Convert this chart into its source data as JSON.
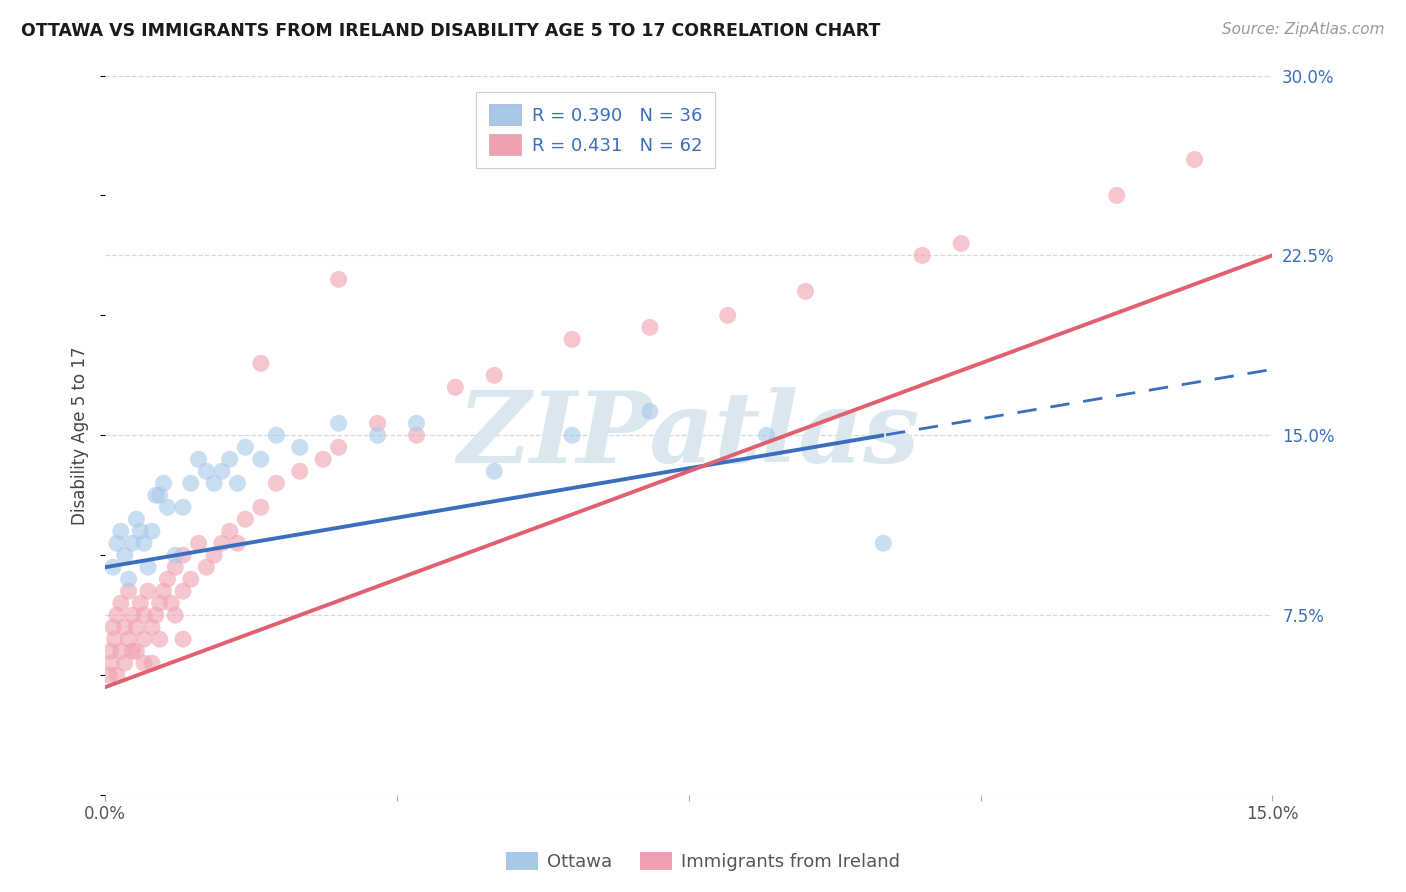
{
  "title": "OTTAWA VS IMMIGRANTS FROM IRELAND DISABILITY AGE 5 TO 17 CORRELATION CHART",
  "source": "Source: ZipAtlas.com",
  "ylabel": "Disability Age 5 to 17",
  "x_min": 0.0,
  "x_max": 15.0,
  "y_min": 0.0,
  "y_max": 30.0,
  "ottawa_R": 0.39,
  "ottawa_N": 36,
  "ireland_R": 0.431,
  "ireland_N": 62,
  "ottawa_color": "#a8c8e8",
  "ireland_color": "#f0a0b0",
  "ottawa_line_color": "#3a6fbe",
  "ireland_line_color": "#e06070",
  "ottawa_line_intercept": 9.5,
  "ottawa_line_slope": 0.55,
  "ottawa_solid_end": 10.0,
  "ireland_line_intercept": 4.5,
  "ireland_line_slope": 1.2,
  "ottawa_scatter": {
    "x": [
      0.1,
      0.15,
      0.2,
      0.25,
      0.3,
      0.35,
      0.4,
      0.5,
      0.55,
      0.6,
      0.7,
      0.75,
      0.8,
      0.9,
      1.0,
      1.1,
      1.2,
      1.3,
      1.4,
      1.5,
      1.6,
      1.7,
      1.8,
      2.0,
      2.2,
      2.5,
      3.0,
      3.5,
      4.0,
      5.0,
      6.0,
      7.0,
      8.5,
      10.0,
      0.45,
      0.65
    ],
    "y": [
      9.5,
      10.5,
      11.0,
      10.0,
      9.0,
      10.5,
      11.5,
      10.5,
      9.5,
      11.0,
      12.5,
      13.0,
      12.0,
      10.0,
      12.0,
      13.0,
      14.0,
      13.5,
      13.0,
      13.5,
      14.0,
      13.0,
      14.5,
      14.0,
      15.0,
      14.5,
      15.5,
      15.0,
      15.5,
      13.5,
      15.0,
      16.0,
      15.0,
      10.5,
      11.0,
      12.5
    ]
  },
  "ireland_scatter": {
    "x": [
      0.05,
      0.07,
      0.08,
      0.1,
      0.12,
      0.15,
      0.15,
      0.2,
      0.2,
      0.25,
      0.25,
      0.3,
      0.3,
      0.35,
      0.35,
      0.4,
      0.4,
      0.45,
      0.5,
      0.5,
      0.5,
      0.55,
      0.6,
      0.6,
      0.65,
      0.7,
      0.7,
      0.75,
      0.8,
      0.85,
      0.9,
      0.9,
      1.0,
      1.0,
      1.0,
      1.1,
      1.2,
      1.3,
      1.4,
      1.5,
      1.6,
      1.7,
      1.8,
      2.0,
      2.2,
      2.5,
      2.8,
      3.0,
      3.5,
      4.0,
      4.5,
      5.0,
      6.0,
      7.0,
      8.0,
      9.0,
      10.5,
      11.0,
      13.0,
      14.0,
      2.0,
      3.0
    ],
    "y": [
      5.0,
      6.0,
      5.5,
      7.0,
      6.5,
      5.0,
      7.5,
      6.0,
      8.0,
      5.5,
      7.0,
      6.5,
      8.5,
      6.0,
      7.5,
      7.0,
      6.0,
      8.0,
      6.5,
      7.5,
      5.5,
      8.5,
      7.0,
      5.5,
      7.5,
      8.0,
      6.5,
      8.5,
      9.0,
      8.0,
      9.5,
      7.5,
      8.5,
      10.0,
      6.5,
      9.0,
      10.5,
      9.5,
      10.0,
      10.5,
      11.0,
      10.5,
      11.5,
      12.0,
      13.0,
      13.5,
      14.0,
      14.5,
      15.5,
      15.0,
      17.0,
      17.5,
      19.0,
      19.5,
      20.0,
      21.0,
      22.5,
      23.0,
      25.0,
      26.5,
      18.0,
      21.5
    ]
  },
  "background_color": "#ffffff",
  "grid_color": "#d0d8e0",
  "watermark_text": "ZIPatlas",
  "watermark_color": "#dce8f0"
}
